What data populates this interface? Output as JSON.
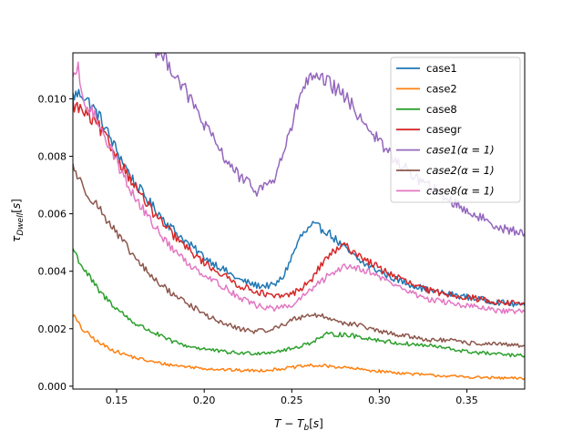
{
  "chart_data": {
    "type": "line",
    "title": "",
    "xlabel": "T − T_b[s]",
    "ylabel": "τ_Dwell[s]",
    "xlim": [
      0.125,
      0.383
    ],
    "ylim": [
      -0.0001,
      0.0116
    ],
    "xticks": [
      "0.15",
      "0.20",
      "0.25",
      "0.30",
      "0.35"
    ],
    "xtick_values": [
      0.15,
      0.2,
      0.25,
      0.3,
      0.35
    ],
    "yticks": [
      "0.000",
      "0.002",
      "0.004",
      "0.006",
      "0.008",
      "0.010"
    ],
    "ytick_values": [
      0.0,
      0.002,
      0.004,
      0.006,
      0.008,
      0.01
    ],
    "grid": false,
    "legend_position": "top-right",
    "series": [
      {
        "name": "case1",
        "color": "#1f77b4",
        "points": [
          [
            0.125,
            0.0101
          ],
          [
            0.13,
            0.0102
          ],
          [
            0.14,
            0.0094
          ],
          [
            0.15,
            0.0082
          ],
          [
            0.16,
            0.0071
          ],
          [
            0.17,
            0.0063
          ],
          [
            0.18,
            0.0056
          ],
          [
            0.19,
            0.005
          ],
          [
            0.2,
            0.0045
          ],
          [
            0.21,
            0.0041
          ],
          [
            0.22,
            0.0037
          ],
          [
            0.23,
            0.0035
          ],
          [
            0.24,
            0.0035
          ],
          [
            0.245,
            0.0038
          ],
          [
            0.25,
            0.0045
          ],
          [
            0.255,
            0.0052
          ],
          [
            0.262,
            0.0056
          ],
          [
            0.27,
            0.0054
          ],
          [
            0.28,
            0.0048
          ],
          [
            0.29,
            0.0043
          ],
          [
            0.3,
            0.004
          ],
          [
            0.31,
            0.0037
          ],
          [
            0.32,
            0.0035
          ],
          [
            0.33,
            0.0033
          ],
          [
            0.34,
            0.0032
          ],
          [
            0.35,
            0.0031
          ],
          [
            0.36,
            0.003
          ],
          [
            0.37,
            0.0029
          ],
          [
            0.383,
            0.0028
          ]
        ]
      },
      {
        "name": "case2",
        "color": "#ff7f0e",
        "points": [
          [
            0.125,
            0.0025
          ],
          [
            0.13,
            0.002
          ],
          [
            0.14,
            0.0015
          ],
          [
            0.15,
            0.0012
          ],
          [
            0.16,
            0.001
          ],
          [
            0.17,
            0.00085
          ],
          [
            0.18,
            0.00075
          ],
          [
            0.19,
            0.00068
          ],
          [
            0.2,
            0.00062
          ],
          [
            0.21,
            0.00058
          ],
          [
            0.22,
            0.00055
          ],
          [
            0.23,
            0.00054
          ],
          [
            0.24,
            0.00058
          ],
          [
            0.25,
            0.00065
          ],
          [
            0.26,
            0.00072
          ],
          [
            0.27,
            0.0007
          ],
          [
            0.28,
            0.00065
          ],
          [
            0.29,
            0.00058
          ],
          [
            0.3,
            0.00052
          ],
          [
            0.31,
            0.00047
          ],
          [
            0.32,
            0.00042
          ],
          [
            0.33,
            0.00038
          ],
          [
            0.34,
            0.00035
          ],
          [
            0.35,
            0.00032
          ],
          [
            0.36,
            0.0003
          ],
          [
            0.37,
            0.00028
          ],
          [
            0.383,
            0.00027
          ]
        ]
      },
      {
        "name": "case8",
        "color": "#2ca02c",
        "points": [
          [
            0.125,
            0.0048
          ],
          [
            0.13,
            0.0042
          ],
          [
            0.14,
            0.0033
          ],
          [
            0.15,
            0.0027
          ],
          [
            0.16,
            0.0022
          ],
          [
            0.17,
            0.0019
          ],
          [
            0.18,
            0.0016
          ],
          [
            0.19,
            0.0014
          ],
          [
            0.2,
            0.0013
          ],
          [
            0.21,
            0.0012
          ],
          [
            0.22,
            0.00115
          ],
          [
            0.23,
            0.00115
          ],
          [
            0.24,
            0.0012
          ],
          [
            0.25,
            0.0013
          ],
          [
            0.26,
            0.0015
          ],
          [
            0.27,
            0.0018
          ],
          [
            0.28,
            0.0018
          ],
          [
            0.29,
            0.0017
          ],
          [
            0.3,
            0.0016
          ],
          [
            0.31,
            0.0015
          ],
          [
            0.32,
            0.00145
          ],
          [
            0.33,
            0.0014
          ],
          [
            0.34,
            0.0013
          ],
          [
            0.35,
            0.0012
          ],
          [
            0.36,
            0.00115
          ],
          [
            0.37,
            0.0011
          ],
          [
            0.383,
            0.00105
          ]
        ]
      },
      {
        "name": "casegr",
        "color": "#d62728",
        "points": [
          [
            0.125,
            0.0098
          ],
          [
            0.13,
            0.0096
          ],
          [
            0.14,
            0.009
          ],
          [
            0.15,
            0.008
          ],
          [
            0.16,
            0.007
          ],
          [
            0.17,
            0.0061
          ],
          [
            0.18,
            0.0054
          ],
          [
            0.19,
            0.0048
          ],
          [
            0.2,
            0.0043
          ],
          [
            0.21,
            0.0039
          ],
          [
            0.22,
            0.0035
          ],
          [
            0.23,
            0.0033
          ],
          [
            0.24,
            0.0031
          ],
          [
            0.25,
            0.0032
          ],
          [
            0.26,
            0.0036
          ],
          [
            0.27,
            0.0045
          ],
          [
            0.28,
            0.0049
          ],
          [
            0.29,
            0.0045
          ],
          [
            0.3,
            0.0041
          ],
          [
            0.31,
            0.0038
          ],
          [
            0.32,
            0.0035
          ],
          [
            0.33,
            0.0033
          ],
          [
            0.34,
            0.0032
          ],
          [
            0.35,
            0.0031
          ],
          [
            0.36,
            0.003
          ],
          [
            0.37,
            0.0029
          ],
          [
            0.383,
            0.0029
          ]
        ]
      },
      {
        "name": "case1(α = 1)",
        "color": "#9467bd",
        "points": [
          [
            0.17,
            0.0119
          ],
          [
            0.18,
            0.0112
          ],
          [
            0.19,
            0.0102
          ],
          [
            0.2,
            0.0091
          ],
          [
            0.21,
            0.0081
          ],
          [
            0.22,
            0.0073
          ],
          [
            0.23,
            0.0068
          ],
          [
            0.24,
            0.0072
          ],
          [
            0.25,
            0.009
          ],
          [
            0.255,
            0.0102
          ],
          [
            0.26,
            0.0107
          ],
          [
            0.27,
            0.0106
          ],
          [
            0.28,
            0.0101
          ],
          [
            0.29,
            0.0093
          ],
          [
            0.3,
            0.0085
          ],
          [
            0.31,
            0.0078
          ],
          [
            0.32,
            0.0073
          ],
          [
            0.33,
            0.0069
          ],
          [
            0.34,
            0.0065
          ],
          [
            0.35,
            0.0061
          ],
          [
            0.36,
            0.0058
          ],
          [
            0.37,
            0.0055
          ],
          [
            0.383,
            0.0053
          ]
        ]
      },
      {
        "name": "case2(α = 1)",
        "color": "#8c564b",
        "points": [
          [
            0.125,
            0.0077
          ],
          [
            0.13,
            0.007
          ],
          [
            0.14,
            0.0062
          ],
          [
            0.15,
            0.0053
          ],
          [
            0.16,
            0.0045
          ],
          [
            0.17,
            0.0038
          ],
          [
            0.18,
            0.0033
          ],
          [
            0.19,
            0.0029
          ],
          [
            0.2,
            0.0025
          ],
          [
            0.21,
            0.0022
          ],
          [
            0.22,
            0.002
          ],
          [
            0.23,
            0.0019
          ],
          [
            0.24,
            0.002
          ],
          [
            0.25,
            0.0023
          ],
          [
            0.26,
            0.0025
          ],
          [
            0.27,
            0.0024
          ],
          [
            0.28,
            0.0022
          ],
          [
            0.29,
            0.0021
          ],
          [
            0.3,
            0.0019
          ],
          [
            0.31,
            0.0018
          ],
          [
            0.32,
            0.0017
          ],
          [
            0.33,
            0.0016
          ],
          [
            0.34,
            0.0016
          ],
          [
            0.35,
            0.0015
          ],
          [
            0.36,
            0.00148
          ],
          [
            0.37,
            0.00145
          ],
          [
            0.383,
            0.0014
          ]
        ]
      },
      {
        "name": "case8(α = 1)",
        "color": "#e377c2",
        "points": [
          [
            0.125,
            0.0105
          ],
          [
            0.128,
            0.0112
          ],
          [
            0.13,
            0.01
          ],
          [
            0.14,
            0.0092
          ],
          [
            0.15,
            0.0078
          ],
          [
            0.16,
            0.0066
          ],
          [
            0.17,
            0.0057
          ],
          [
            0.18,
            0.0049
          ],
          [
            0.19,
            0.0043
          ],
          [
            0.2,
            0.0039
          ],
          [
            0.21,
            0.0035
          ],
          [
            0.22,
            0.0031
          ],
          [
            0.23,
            0.0028
          ],
          [
            0.24,
            0.0027
          ],
          [
            0.25,
            0.0028
          ],
          [
            0.26,
            0.0033
          ],
          [
            0.27,
            0.0038
          ],
          [
            0.28,
            0.0042
          ],
          [
            0.29,
            0.0041
          ],
          [
            0.3,
            0.0038
          ],
          [
            0.31,
            0.0035
          ],
          [
            0.32,
            0.0032
          ],
          [
            0.33,
            0.003
          ],
          [
            0.34,
            0.0029
          ],
          [
            0.35,
            0.0028
          ],
          [
            0.36,
            0.0027
          ],
          [
            0.37,
            0.0026
          ],
          [
            0.383,
            0.0026
          ]
        ]
      }
    ]
  }
}
